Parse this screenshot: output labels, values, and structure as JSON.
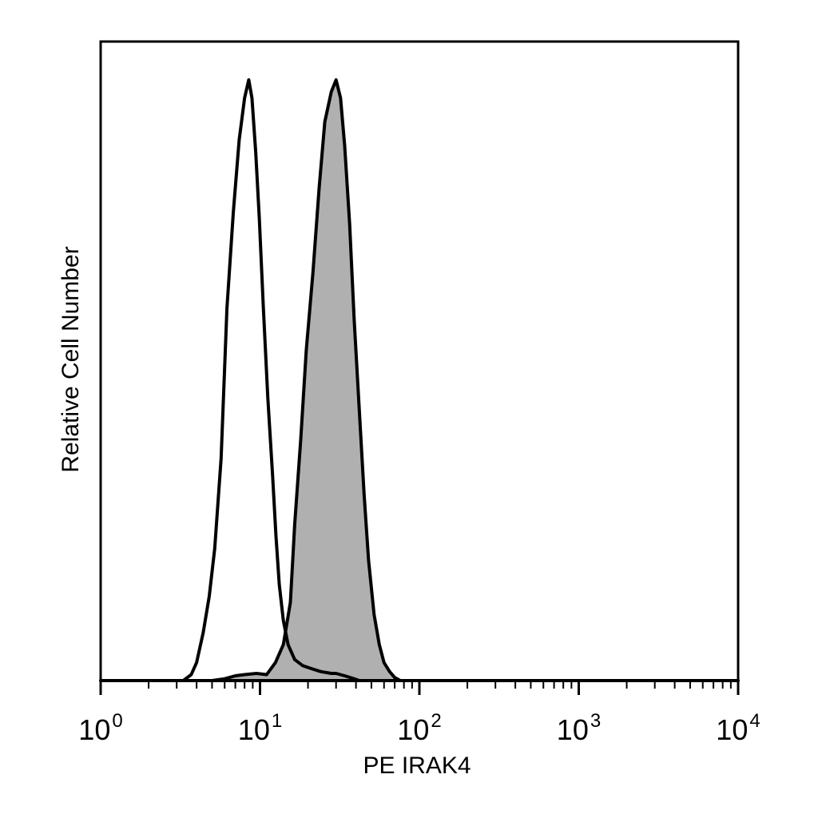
{
  "chart_data": {
    "type": "area",
    "title": "",
    "xlabel": "PE IRAK4",
    "ylabel": "Relative Cell Number",
    "xscale": "log",
    "xlim": [
      1,
      10000
    ],
    "ylim": [
      0,
      1.0
    ],
    "grid": false,
    "xticks": [
      {
        "value": 1,
        "base": "10",
        "exp": "0"
      },
      {
        "value": 10,
        "base": "10",
        "exp": "1"
      },
      {
        "value": 100,
        "base": "10",
        "exp": "2"
      },
      {
        "value": 1000,
        "base": "10",
        "exp": "3"
      },
      {
        "value": 10000,
        "base": "10",
        "exp": "4"
      }
    ],
    "series": [
      {
        "style": "outline",
        "fill": "none",
        "stroke": "#000000",
        "x": [
          1,
          3.3,
          3.7,
          4.0,
          4.4,
          4.8,
          5.2,
          5.7,
          6.2,
          6.8,
          7.4,
          8.0,
          8.5,
          8.9,
          9.4,
          9.9,
          10.5,
          11.2,
          12.0,
          12.6,
          13.2,
          14.0,
          15.0,
          16.5,
          18.5,
          21,
          24,
          28,
          30,
          34,
          38,
          42,
          10000
        ],
        "y": [
          0,
          0,
          0.01,
          0.03,
          0.08,
          0.14,
          0.22,
          0.37,
          0.62,
          0.78,
          0.9,
          0.97,
          1.0,
          0.97,
          0.88,
          0.77,
          0.62,
          0.47,
          0.34,
          0.24,
          0.16,
          0.1,
          0.06,
          0.035,
          0.025,
          0.02,
          0.015,
          0.012,
          0.012,
          0.008,
          0.004,
          0.0,
          0
        ]
      },
      {
        "style": "filled",
        "fill": "#b0b0b0",
        "stroke": "#000000",
        "x": [
          1,
          5.0,
          6.0,
          7.0,
          8.0,
          9.5,
          11.0,
          12.5,
          14.0,
          15.5,
          16.5,
          18.0,
          19.5,
          21.5,
          23.5,
          25.5,
          28,
          30,
          32,
          34,
          36.5,
          39,
          42,
          45,
          48,
          52,
          56,
          60,
          65,
          70,
          76,
          10000
        ],
        "y": [
          0,
          0,
          0.003,
          0.008,
          0.01,
          0.012,
          0.01,
          0.03,
          0.06,
          0.13,
          0.26,
          0.4,
          0.55,
          0.68,
          0.82,
          0.93,
          0.98,
          1.0,
          0.97,
          0.89,
          0.76,
          0.6,
          0.45,
          0.31,
          0.2,
          0.11,
          0.06,
          0.03,
          0.015,
          0.005,
          0,
          0
        ]
      }
    ]
  }
}
